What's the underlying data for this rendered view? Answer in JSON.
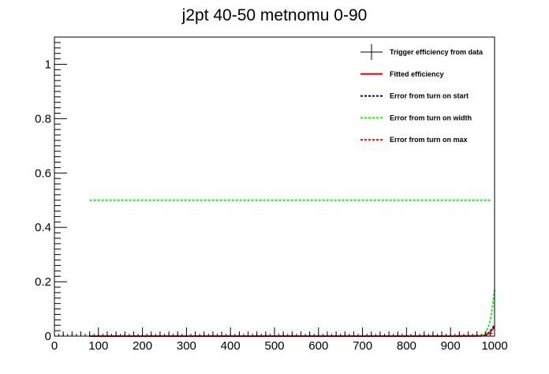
{
  "chart_data": {
    "type": "line",
    "title": "j2pt 40-50 metnomu 0-90",
    "xlabel": "",
    "ylabel": "",
    "xlim": [
      0,
      1000
    ],
    "ylim": [
      0,
      1.1
    ],
    "x_ticks": [
      0,
      100,
      200,
      300,
      400,
      500,
      600,
      700,
      800,
      900,
      1000
    ],
    "x_tick_labels": [
      "0",
      "100",
      "200",
      "300",
      "400",
      "500",
      "600",
      "700",
      "800",
      "900",
      "1000"
    ],
    "y_ticks": [
      0,
      0.2,
      0.4,
      0.6,
      0.8,
      1
    ],
    "y_tick_labels": [
      "0",
      "0.2",
      "0.4",
      "0.6",
      "0.8",
      "1"
    ],
    "grid": false,
    "legend_position": "top-right",
    "series": [
      {
        "name": "Trigger efficiency from data",
        "style": "markers-errorbars",
        "color": "#000000",
        "x": [
          10,
          20,
          30,
          40,
          50,
          60,
          70,
          80,
          90,
          100,
          110,
          120,
          130,
          140,
          150,
          160,
          170,
          180,
          190,
          200,
          210,
          220,
          230,
          240,
          250,
          260,
          270,
          280,
          290,
          300,
          310,
          320,
          330,
          340,
          350,
          360,
          370,
          380,
          390,
          400,
          410,
          420,
          430,
          440,
          450,
          460,
          470,
          480,
          490,
          500,
          510,
          520,
          530,
          540,
          550,
          560,
          570,
          580,
          590,
          600,
          610,
          620,
          630,
          640,
          650,
          660,
          670,
          680,
          690,
          700,
          710,
          720,
          730,
          740,
          750,
          760,
          770,
          780,
          790,
          800,
          810,
          820,
          830,
          840,
          850,
          860,
          870,
          880,
          890,
          900,
          910,
          920,
          930,
          940,
          950,
          960,
          970,
          980,
          990
        ],
        "y": [
          0,
          0,
          0,
          0,
          0,
          0,
          0,
          0,
          0,
          0,
          0,
          0,
          0,
          0,
          0,
          0,
          0,
          0,
          0,
          0,
          0,
          0,
          0,
          0,
          0,
          0,
          0,
          0,
          0,
          0,
          0,
          0,
          0,
          0,
          0,
          0,
          0,
          0,
          0,
          0,
          0,
          0,
          0,
          0,
          0,
          0,
          0,
          0,
          0,
          0,
          0,
          0,
          0,
          0,
          0,
          0,
          0,
          0,
          0,
          0,
          0,
          0,
          0,
          0,
          0,
          0,
          0,
          0,
          0,
          0,
          0,
          0,
          0,
          0,
          0,
          0,
          0,
          0,
          0,
          0,
          0,
          0,
          0,
          0,
          0,
          0,
          0,
          0,
          0,
          0,
          0,
          0,
          0,
          0,
          0,
          0,
          0,
          0,
          0.01
        ]
      },
      {
        "name": "Fitted efficiency",
        "style": "solid",
        "color": "#ff0000",
        "x": [
          80,
          300,
          500,
          700,
          900,
          970,
          980,
          985,
          990,
          995,
          1000
        ],
        "y": [
          0,
          0,
          0,
          0,
          0,
          0.001,
          0.004,
          0.008,
          0.015,
          0.025,
          0.03
        ]
      },
      {
        "name": "Error from turn on start",
        "style": "dotted",
        "color": "#00008b",
        "x": [
          80,
          300,
          500,
          700,
          900,
          970,
          980,
          985,
          990,
          995,
          1000
        ],
        "y": [
          0,
          0,
          0,
          0,
          0,
          0.001,
          0.004,
          0.01,
          0.018,
          0.03,
          0.04
        ]
      },
      {
        "name": "Error from turn on width",
        "style": "dotted",
        "color": "#00ff00",
        "x": [
          80,
          990
        ],
        "y": [
          0.5,
          0.5
        ],
        "x2": [
          970,
          975,
          980,
          985,
          990,
          995,
          1000
        ],
        "y2": [
          0,
          0.006,
          0.015,
          0.03,
          0.055,
          0.105,
          0.17
        ]
      },
      {
        "name": "Error from turn on max",
        "style": "dotted",
        "color": "#ff0000",
        "x": [
          80,
          300,
          500,
          700,
          900,
          970,
          980,
          985,
          990,
          995,
          1000
        ],
        "y": [
          0,
          0,
          0,
          0,
          0,
          0.001,
          0.004,
          0.008,
          0.015,
          0.025,
          0.03
        ]
      }
    ]
  }
}
